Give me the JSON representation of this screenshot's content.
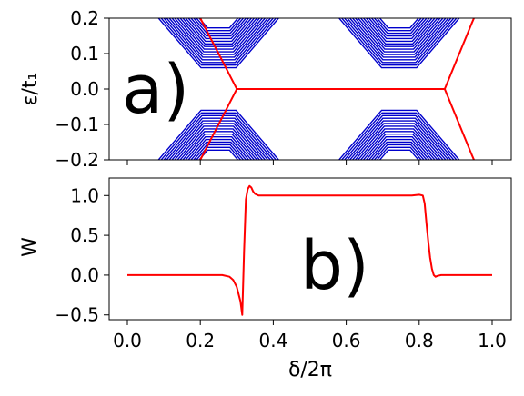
{
  "chart_data": [
    {
      "type": "line",
      "panel_label": "a)",
      "ylabel": "ε/t₁",
      "xlim": [
        0.0,
        1.0
      ],
      "ylim": [
        -0.2,
        0.2
      ],
      "yticks": [
        "0.2",
        "0.1",
        "0.0",
        "−0.1",
        "−0.2"
      ],
      "ytick_values": [
        0.2,
        0.1,
        0.0,
        -0.1,
        -0.2
      ],
      "grid": false,
      "legend": "none",
      "bulk_color": "#0000cc",
      "edge_color": "#ff0000",
      "bulk_bands_per_side": 16,
      "gap_closing_regions": [
        [
          0.2,
          0.3
        ],
        [
          0.7,
          0.87
        ]
      ],
      "edge_mode": {
        "x": [
          0.0,
          0.2,
          0.3,
          0.87,
          0.95,
          1.0
        ],
        "y_abs": [
          0.46,
          0.2,
          0.0,
          0.0,
          0.2,
          0.35
        ]
      }
    },
    {
      "type": "line",
      "panel_label": "b)",
      "ylabel": "W",
      "xlabel": "δ/2π",
      "xlim": [
        0.0,
        1.0
      ],
      "ylim": [
        -0.56,
        1.22
      ],
      "xticks": [
        "0.0",
        "0.2",
        "0.4",
        "0.6",
        "0.8",
        "1.0"
      ],
      "xtick_values": [
        0.0,
        0.2,
        0.4,
        0.6,
        0.8,
        1.0
      ],
      "yticks": [
        "1.0",
        "0.5",
        "0.0",
        "−0.5"
      ],
      "ytick_values": [
        1.0,
        0.5,
        0.0,
        -0.5
      ],
      "grid": false,
      "legend": "none",
      "color": "#ff0000",
      "x": [
        0.0,
        0.26,
        0.28,
        0.29,
        0.3,
        0.31,
        0.315,
        0.32,
        0.325,
        0.33,
        0.335,
        0.34,
        0.345,
        0.35,
        0.36,
        0.38,
        0.4,
        0.45,
        0.5,
        0.6,
        0.7,
        0.78,
        0.8,
        0.81,
        0.815,
        0.82,
        0.825,
        0.83,
        0.835,
        0.84,
        0.845,
        0.85,
        0.86,
        0.88,
        1.0
      ],
      "y": [
        0.0,
        0.0,
        -0.02,
        -0.06,
        -0.15,
        -0.33,
        -0.5,
        0.3,
        0.95,
        1.08,
        1.12,
        1.1,
        1.05,
        1.02,
        1.0,
        1.0,
        1.0,
        1.0,
        1.0,
        1.0,
        1.0,
        1.0,
        1.01,
        1.0,
        0.9,
        0.65,
        0.42,
        0.22,
        0.08,
        0.0,
        -0.02,
        -0.01,
        0.0,
        0.0,
        0.0
      ]
    }
  ]
}
